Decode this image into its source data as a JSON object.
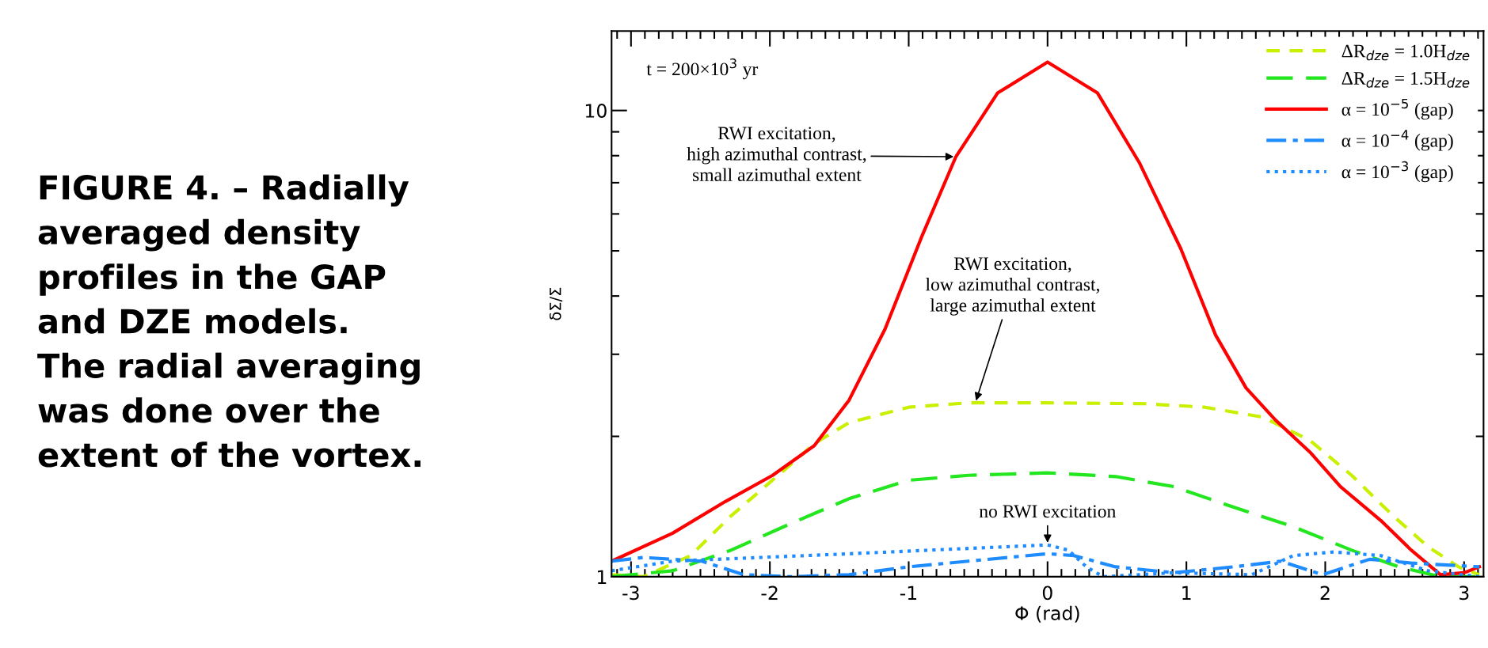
{
  "chart_data": {
    "type": "line",
    "xlabel": "Φ (rad)",
    "ylabel": "δΣ/Σ",
    "log": "y",
    "xlim": [
      -3.14,
      3.14
    ],
    "xticks": [
      -3,
      -2,
      -1,
      0,
      1,
      2,
      3
    ],
    "ylim": [
      1,
      14.8
    ],
    "yticks": [
      1,
      10
    ],
    "grid": false,
    "legend": "top right",
    "series": [
      {
        "name": "ΔR$_{dze}$ = 1.0H$_{dze}$",
        "color": "#c8f000",
        "line_style": "dashed",
        "x": [
          -3.14,
          -2.91,
          -2.57,
          -2.28,
          -1.94,
          -1.68,
          -1.43,
          -1.0,
          -0.57,
          0,
          0.7,
          1.13,
          1.55,
          1.89,
          2.19,
          2.49,
          2.74,
          2.96,
          3.11
        ],
        "values": [
          1.01,
          1.0,
          1.11,
          1.35,
          1.65,
          1.93,
          2.14,
          2.31,
          2.36,
          2.36,
          2.35,
          2.31,
          2.2,
          1.96,
          1.65,
          1.35,
          1.16,
          1.05,
          1.01
        ]
      },
      {
        "name": "ΔR$_{dze}$ = 1.5H$_{dze}$",
        "color": "#22e61e",
        "line_style": "longdash",
        "x": [
          -3.14,
          -2.7,
          -2.28,
          -1.85,
          -1.43,
          -1.0,
          -0.57,
          0,
          0.49,
          0.91,
          1.34,
          1.77,
          2.19,
          2.53,
          2.83,
          3.14
        ],
        "values": [
          1.0,
          1.03,
          1.14,
          1.3,
          1.47,
          1.61,
          1.65,
          1.67,
          1.64,
          1.56,
          1.41,
          1.28,
          1.14,
          1.05,
          1.0,
          1.0
        ]
      },
      {
        "name": "α = 10$^{−5}$ (gap)",
        "color": "#ff0000",
        "line_style": "solid",
        "x": [
          -3.14,
          -2.7,
          -2.32,
          -1.98,
          -1.68,
          -1.43,
          -1.17,
          -0.91,
          -0.66,
          -0.36,
          0,
          0.36,
          0.66,
          0.96,
          1.21,
          1.43,
          1.64,
          1.89,
          2.11,
          2.4,
          2.62,
          2.83,
          3.0,
          3.11
        ],
        "values": [
          1.08,
          1.24,
          1.45,
          1.65,
          1.91,
          2.39,
          3.4,
          5.33,
          7.96,
          10.9,
          12.7,
          10.9,
          7.74,
          5.05,
          3.3,
          2.54,
          2.17,
          1.85,
          1.56,
          1.32,
          1.14,
          1.01,
          1.02,
          1.05
        ]
      },
      {
        "name": "α = 10$^{−4}$ (gap)",
        "color": "#1e8cff",
        "line_style": "dashdot",
        "x": [
          -3.14,
          -2.91,
          -2.49,
          -2.19,
          -1.85,
          -1.43,
          -1.0,
          -0.57,
          0,
          0.19,
          0.49,
          0.91,
          1.34,
          1.68,
          1.98,
          2.32,
          2.62,
          3.11
        ],
        "values": [
          1.08,
          1.1,
          1.08,
          1.01,
          1.0,
          1.01,
          1.05,
          1.08,
          1.12,
          1.11,
          1.05,
          1.02,
          1.05,
          1.08,
          1.01,
          1.09,
          1.07,
          1.05
        ]
      },
      {
        "name": "α = 10$^{−3}$ (gap)",
        "color": "#1e8cff",
        "line_style": "dotted",
        "x": [
          -3.14,
          -2.7,
          -2.06,
          -1.43,
          -0.57,
          0,
          0.15,
          0.28,
          0.4,
          0.91,
          1.47,
          1.77,
          2.06,
          2.4,
          2.74,
          3.11
        ],
        "values": [
          1.03,
          1.08,
          1.1,
          1.12,
          1.15,
          1.17,
          1.14,
          1.05,
          1.0,
          1.02,
          1.01,
          1.11,
          1.13,
          1.11,
          1.03,
          1.0
        ]
      }
    ],
    "annotations": [
      "t = 200×10$^{3}$ yr",
      {
        "text": "RWI excitation,\nhigh azimuthal contrast,\nsmall azimuthal extent",
        "x": -0.66,
        "y": 7.96
      },
      {
        "text": "RWI excitation,\nlow azimuthal contrast,\nlarge azimuthal extent",
        "x": -0.52,
        "y": 2.36
      },
      {
        "text": "no RWI excitation",
        "x": 0,
        "y": 1.17
      },
      "FIGURE 4. – Radially\naveraged density\nprofiles in the GAP\nand DZE models.\nThe radial averaging\nwas done over the\nextent of the vortex."
    ]
  }
}
